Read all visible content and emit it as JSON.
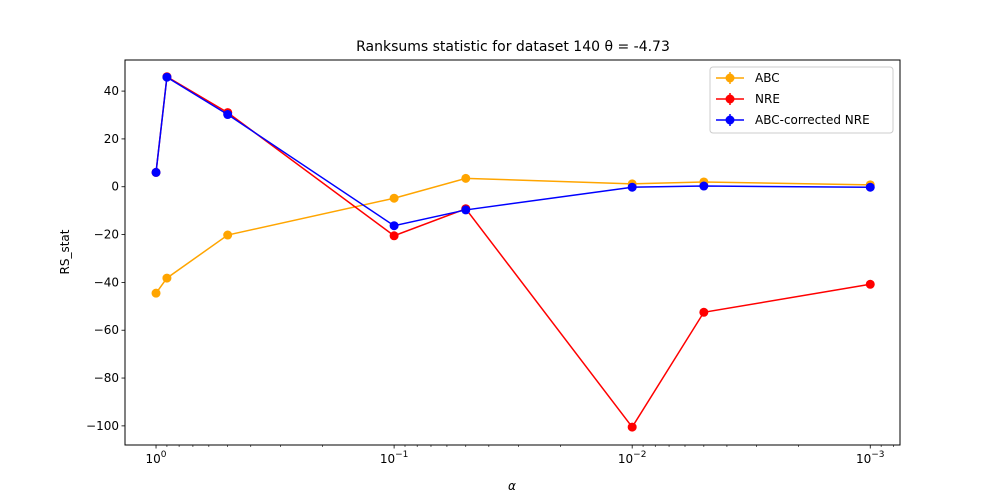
{
  "chart_data": {
    "type": "line",
    "title": "Ranksums statistic for dataset 140 θ =  -4.73",
    "xlabel": "α",
    "ylabel": "RS_stat",
    "xscale": "log",
    "xaxis_inverted": true,
    "xlim": [
      1.35,
      0.00075
    ],
    "ylim": [
      -108,
      53
    ],
    "x": [
      1.0,
      0.9,
      0.5,
      0.1,
      0.05,
      0.01,
      0.005,
      0.001
    ],
    "xticks": [
      {
        "value": 1,
        "label": "10^0"
      },
      {
        "value": 0.1,
        "label": "10^−1"
      },
      {
        "value": 0.01,
        "label": "10^−2"
      },
      {
        "value": 0.001,
        "label": "10^−3"
      }
    ],
    "yticks": [
      40,
      20,
      0,
      -20,
      -40,
      -60,
      -80,
      -100
    ],
    "ytick_labels": [
      "40",
      "20",
      "0",
      "−20",
      "−40",
      "−60",
      "−80",
      "−100"
    ],
    "legend_position": "upper right",
    "grid": false,
    "series": [
      {
        "name": "ABC",
        "color": "#ffa500",
        "values": [
          -44.5,
          -38.2,
          -20.2,
          -4.8,
          3.5,
          1.2,
          2.0,
          0.8
        ]
      },
      {
        "name": "NRE",
        "color": "#ff0000",
        "values": [
          6.0,
          46.0,
          31.0,
          -20.5,
          -9.2,
          -100.5,
          -52.5,
          -40.8
        ]
      },
      {
        "name": "ABC-corrected NRE",
        "color": "#0000ff",
        "values": [
          6.0,
          45.8,
          30.2,
          -16.3,
          -9.7,
          -0.2,
          0.3,
          -0.2
        ]
      }
    ]
  }
}
